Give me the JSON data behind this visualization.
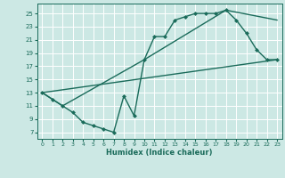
{
  "xlabel": "Humidex (Indice chaleur)",
  "bg_color": "#cce8e4",
  "grid_color": "#ffffff",
  "line_color": "#1a6b5a",
  "markersize": 2.5,
  "linewidth": 1.0,
  "xlim": [
    -0.5,
    23.5
  ],
  "ylim": [
    6,
    26.5
  ],
  "xticks": [
    0,
    1,
    2,
    3,
    4,
    5,
    6,
    7,
    8,
    9,
    10,
    11,
    12,
    13,
    14,
    15,
    16,
    17,
    18,
    19,
    20,
    21,
    22,
    23
  ],
  "yticks": [
    7,
    9,
    11,
    13,
    15,
    17,
    19,
    21,
    23,
    25
  ],
  "series_main": [
    [
      0,
      13
    ],
    [
      1,
      12
    ],
    [
      2,
      11
    ],
    [
      3,
      10
    ],
    [
      4,
      8.5
    ],
    [
      5,
      8
    ],
    [
      6,
      7.5
    ],
    [
      7,
      7
    ],
    [
      8,
      12.5
    ],
    [
      9,
      9.5
    ],
    [
      10,
      18
    ],
    [
      11,
      21.5
    ],
    [
      12,
      21.5
    ],
    [
      13,
      24
    ],
    [
      14,
      24.5
    ],
    [
      15,
      25
    ],
    [
      16,
      25
    ],
    [
      17,
      25
    ],
    [
      18,
      25.5
    ],
    [
      19,
      24
    ],
    [
      20,
      22
    ],
    [
      21,
      19.5
    ],
    [
      22,
      18
    ],
    [
      23,
      18
    ]
  ],
  "series_upper": [
    [
      0,
      13
    ],
    [
      1,
      12
    ],
    [
      2,
      11
    ],
    [
      10,
      18
    ],
    [
      18,
      25.5
    ],
    [
      23,
      24
    ]
  ],
  "series_lower": [
    [
      0,
      13
    ],
    [
      23,
      18
    ]
  ]
}
